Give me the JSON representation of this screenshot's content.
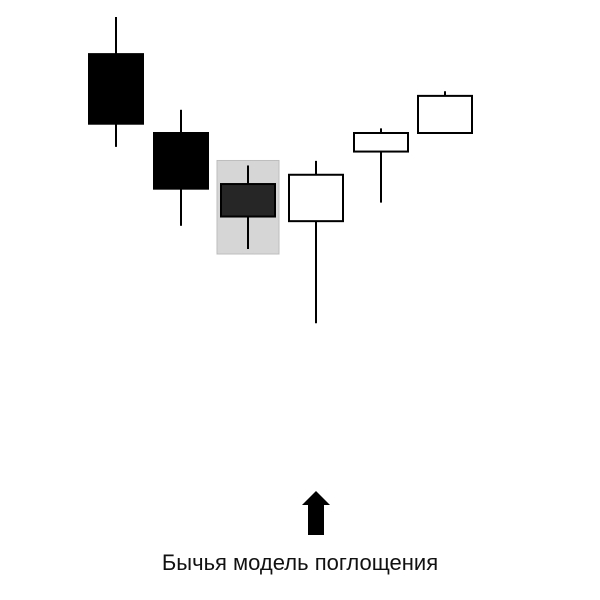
{
  "chart_data": {
    "type": "candlestick",
    "title": "",
    "xlabel": "",
    "ylabel": "",
    "caption": "Бычья модель поглощения",
    "ylim": [
      0,
      100
    ],
    "candles": [
      {
        "open": 92,
        "high": 100,
        "low": 72,
        "close": 77,
        "direction": "bearish",
        "highlighted": false
      },
      {
        "open": 75,
        "high": 80,
        "low": 55,
        "close": 63,
        "direction": "bearish",
        "highlighted": false
      },
      {
        "open": 64,
        "high": 68,
        "low": 50,
        "close": 57,
        "direction": "bearish",
        "highlighted": true
      },
      {
        "open": 56,
        "high": 69,
        "low": 34,
        "close": 66,
        "direction": "bullish",
        "highlighted": false,
        "marked": true
      },
      {
        "open": 71,
        "high": 76,
        "low": 60,
        "close": 75,
        "direction": "bullish",
        "highlighted": false
      },
      {
        "open": 75,
        "high": 84,
        "low": 75,
        "close": 83,
        "direction": "bullish",
        "highlighted": false
      }
    ],
    "colors": {
      "bearish_body": "#000000",
      "highlighted_body": "#262626",
      "bullish_body": "#ffffff",
      "outline": "#000000",
      "highlight_box": "#d6d6d6",
      "arrow": "#000000"
    }
  }
}
